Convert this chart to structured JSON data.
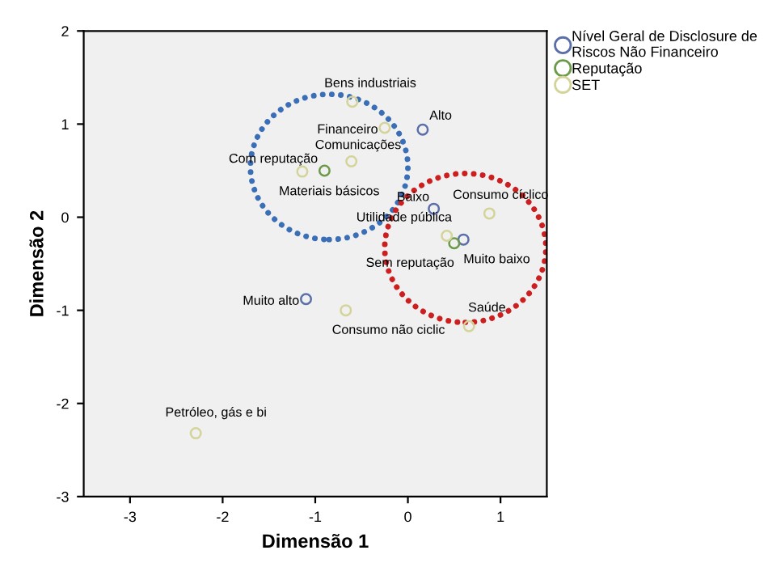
{
  "chart_data": {
    "type": "scatter",
    "xlabel": "Dimensão 1",
    "ylabel": "Dimensão 2",
    "xlim": [
      -3.5,
      1.5
    ],
    "ylim": [
      -3,
      2
    ],
    "xticks": [
      -3,
      -2,
      -1,
      0,
      1
    ],
    "yticks": [
      -3,
      -2,
      -1,
      0,
      1,
      2
    ],
    "grid": false,
    "legend": "top right",
    "marker": "circle",
    "series": [
      {
        "name": "Nível Geral de Disclosure de\nRiscos Não Financeiro",
        "color": "#5a6fa8",
        "x": [
          0.16,
          0.28,
          0.6,
          -1.1
        ],
        "values": [
          0.94,
          0.09,
          -0.24,
          -0.88
        ]
      },
      {
        "name": "Reputação",
        "color": "#6a9a4a",
        "x": [
          -0.9,
          0.5
        ],
        "values": [
          0.5,
          -0.28
        ]
      },
      {
        "name": "SET",
        "color": "#d4d49a",
        "x": [
          -0.6,
          -0.25,
          -0.61,
          -1.14,
          0.88,
          0.42,
          -0.67,
          0.66,
          -2.29
        ],
        "values": [
          1.24,
          0.96,
          0.6,
          0.49,
          0.04,
          -0.2,
          -1.0,
          -1.17,
          -2.32
        ]
      }
    ],
    "annotations": [
      {
        "text": "Alto",
        "x": 0.16,
        "y": 0.94
      },
      {
        "text": "Baixo",
        "x": 0.28,
        "y": 0.09
      },
      {
        "text": "Muito baixo",
        "x": 0.6,
        "y": -0.24
      },
      {
        "text": "Muito alto",
        "x": -1.1,
        "y": -0.88
      },
      {
        "text": "Com reputação",
        "x": -0.9,
        "y": 0.5
      },
      {
        "text": "Sem reputação",
        "x": 0.5,
        "y": -0.28
      },
      {
        "text": "Bens industriais",
        "x": -0.6,
        "y": 1.24
      },
      {
        "text": "Financeiro",
        "x": -0.25,
        "y": 0.96
      },
      {
        "text": "Comunicações",
        "x": -0.61,
        "y": 0.6
      },
      {
        "text": "Materiais básicos",
        "x": -1.14,
        "y": 0.49
      },
      {
        "text": "Consumo cíclico",
        "x": 0.88,
        "y": 0.04
      },
      {
        "text": "Utilidade pública",
        "x": 0.42,
        "y": -0.2
      },
      {
        "text": "Consumo não ciclic",
        "x": -0.67,
        "y": -1.0
      },
      {
        "text": "Saúde",
        "x": 0.66,
        "y": -1.17
      },
      {
        "text": "Petróleo, gás e bi",
        "x": -2.29,
        "y": -2.32
      }
    ]
  }
}
